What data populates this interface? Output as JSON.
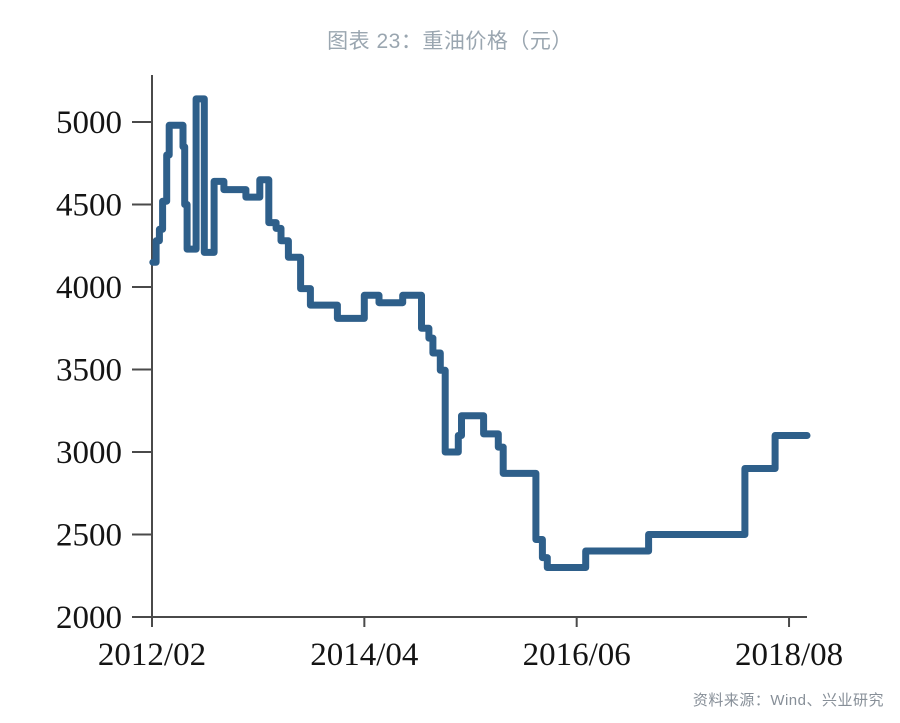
{
  "page": {
    "title": "图表 23：重油价格（元）",
    "source": "资料来源：Wind、兴业研究"
  },
  "colors": {
    "background": "#ffffff",
    "line": "#2e5f8a",
    "title_text": "#9aa6b0",
    "source_text": "#878f98",
    "axis": "#4a4a4a",
    "tick_label": "#141414"
  },
  "chart_data": {
    "type": "line",
    "line_style": "step-after",
    "title": "图表 23：重油价格（元）",
    "series_name": "重油价格",
    "unit": "元",
    "legend": "none",
    "grid": false,
    "x_axis": {
      "start": "2012/02",
      "tick_labels": [
        "2012/02",
        "2014/04",
        "2016/06",
        "2018/08"
      ],
      "tick_months": [
        0,
        26,
        52,
        78
      ],
      "range_months": [
        0,
        80.2
      ]
    },
    "y_axis": {
      "ticks": [
        2000,
        2500,
        3000,
        3500,
        4000,
        4500,
        5000
      ],
      "range": [
        2000,
        5000
      ]
    },
    "points_format": [
      "months_since_2012_02",
      "approx_date",
      "price_yuan"
    ],
    "points": [
      [
        0.1,
        "2012/02",
        4150
      ],
      [
        0.5,
        "2012/03",
        4280
      ],
      [
        0.9,
        "2012/03",
        4350
      ],
      [
        1.3,
        "2012/03",
        4520
      ],
      [
        1.8,
        "2012/04",
        4800
      ],
      [
        2.1,
        "2012/04",
        4980
      ],
      [
        3.8,
        "2012/06",
        4850
      ],
      [
        4.0,
        "2012/06",
        4500
      ],
      [
        4.3,
        "2012/06",
        4230
      ],
      [
        5.4,
        "2012/07",
        5140
      ],
      [
        6.4,
        "2012/08",
        4210
      ],
      [
        7.6,
        "2012/10",
        4640
      ],
      [
        8.8,
        "2012/11",
        4590
      ],
      [
        11.5,
        "2013/01",
        4545
      ],
      [
        13.2,
        "2013/03",
        4650
      ],
      [
        14.3,
        "2013/04",
        4390
      ],
      [
        15.2,
        "2013/05",
        4355
      ],
      [
        15.8,
        "2013/06",
        4280
      ],
      [
        16.7,
        "2013/07",
        4180
      ],
      [
        18.2,
        "2013/08",
        3990
      ],
      [
        19.4,
        "2013/09",
        3890
      ],
      [
        22.7,
        "2014/01",
        3810
      ],
      [
        26.0,
        "2014/04",
        3950
      ],
      [
        27.8,
        "2014/06",
        3905
      ],
      [
        30.7,
        "2014/09",
        3950
      ],
      [
        33.0,
        "2014/11",
        3750
      ],
      [
        33.9,
        "2014/12",
        3690
      ],
      [
        34.4,
        "2014/12",
        3600
      ],
      [
        35.3,
        "2015/01",
        3495
      ],
      [
        35.9,
        "2015/02",
        3000
      ],
      [
        37.5,
        "2015/03",
        3100
      ],
      [
        37.9,
        "2015/04",
        3220
      ],
      [
        40.6,
        "2015/06",
        3110
      ],
      [
        42.4,
        "2015/08",
        3030
      ],
      [
        43.0,
        "2015/09",
        2870
      ],
      [
        47.0,
        "2016/01",
        2470
      ],
      [
        47.8,
        "2016/02",
        2360
      ],
      [
        48.4,
        "2016/02",
        2300
      ],
      [
        53.1,
        "2016/07",
        2400
      ],
      [
        60.8,
        "2017/03",
        2500
      ],
      [
        72.6,
        "2018/03",
        2900
      ],
      [
        76.3,
        "2018/06",
        3100
      ]
    ],
    "end_month": 80.2
  }
}
